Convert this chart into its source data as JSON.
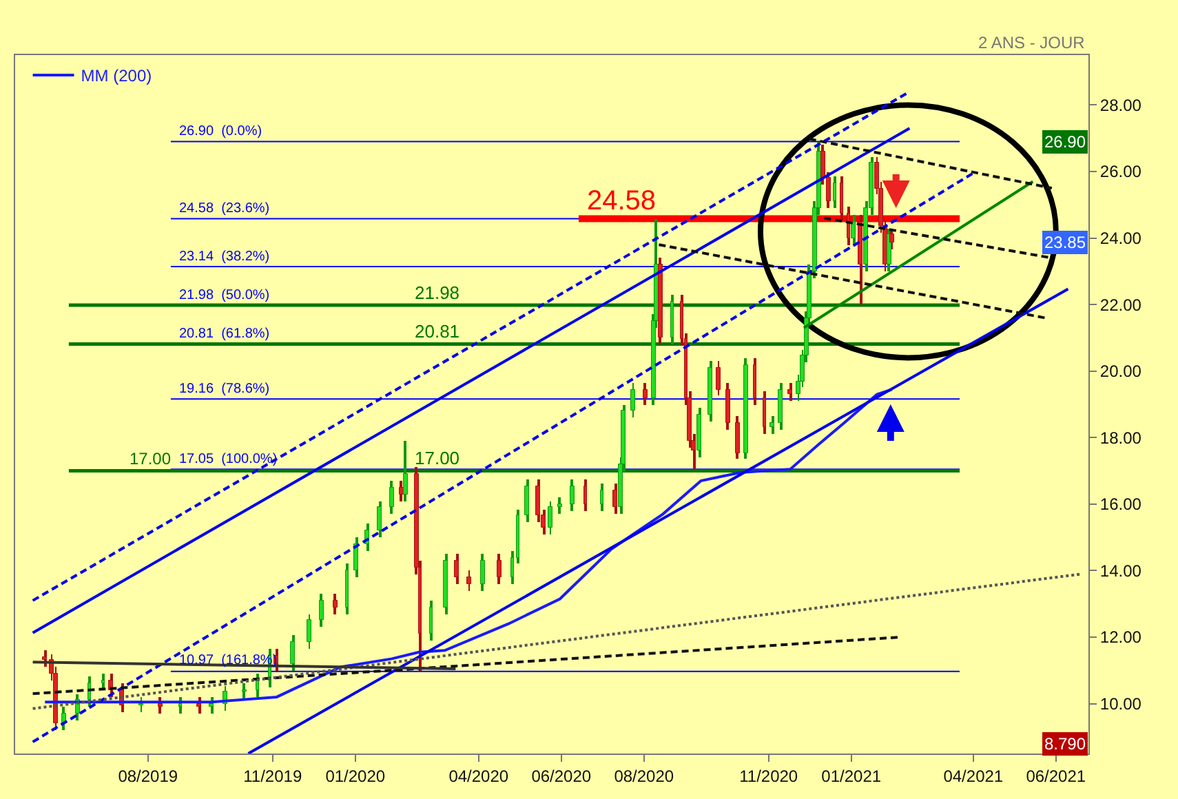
{
  "chart_data": {
    "type": "candlestick",
    "subtitle": "2 ANS - JOUR",
    "x": [
      "2019-05-17",
      "2019-05-22",
      "2019-05-25",
      "2019-05-31",
      "2019-06-10",
      "2019-06-19",
      "2019-06-29",
      "2019-07-05",
      "2019-07-13",
      "2019-07-27",
      "2019-08-10",
      "2019-08-25",
      "2019-09-08",
      "2019-09-17",
      "2019-09-27",
      "2019-10-11",
      "2019-10-21",
      "2019-10-30",
      "2019-11-04",
      "2019-11-16",
      "2019-11-28",
      "2019-12-07",
      "2019-12-17",
      "2019-12-26",
      "2020-01-02",
      "2020-01-10",
      "2020-01-19",
      "2020-01-28",
      "2020-02-04",
      "2020-02-07",
      "2020-02-15",
      "2020-02-18",
      "2020-02-26",
      "2020-03-08",
      "2020-03-16",
      "2020-03-25",
      "2020-04-04",
      "2020-04-16",
      "2020-04-26",
      "2020-04-30",
      "2020-05-07",
      "2020-05-15",
      "2020-05-19",
      "2020-05-24",
      "2020-05-31",
      "2020-06-09",
      "2020-06-19",
      "2020-07-01",
      "2020-07-11",
      "2020-07-15",
      "2020-07-17",
      "2020-07-24",
      "2020-08-02",
      "2020-08-08",
      "2020-08-10",
      "2020-08-13",
      "2020-08-22",
      "2020-08-29",
      "2020-09-01",
      "2020-09-04",
      "2020-09-07",
      "2020-09-11",
      "2020-09-19",
      "2020-09-25",
      "2020-10-02",
      "2020-10-09",
      "2020-10-15",
      "2020-10-22",
      "2020-10-29",
      "2020-11-04",
      "2020-11-10",
      "2020-11-17",
      "2020-11-23",
      "2020-11-26",
      "2020-11-29",
      "2020-12-01",
      "2020-12-05",
      "2020-12-08",
      "2020-12-11",
      "2020-12-15",
      "2020-12-20",
      "2020-12-25",
      "2020-12-30",
      "2021-01-03",
      "2021-01-08",
      "2021-01-12",
      "2021-01-16",
      "2021-01-20",
      "2021-01-23",
      "2021-01-26",
      "2021-01-29",
      "2021-01-31"
    ],
    "ohlc": [
      [
        11.4,
        11.6,
        11.1,
        11.3
      ],
      [
        11.3,
        11.5,
        10.7,
        10.9
      ],
      [
        10.9,
        11.1,
        9.2,
        9.4
      ],
      [
        9.4,
        9.9,
        9.2,
        9.7
      ],
      [
        9.7,
        10.3,
        9.5,
        10.1
      ],
      [
        10.1,
        10.8,
        9.9,
        10.6
      ],
      [
        10.6,
        10.9,
        10.4,
        10.7
      ],
      [
        10.7,
        10.9,
        10.2,
        10.4
      ],
      [
        10.4,
        10.6,
        9.75,
        9.95
      ],
      [
        9.95,
        10.2,
        9.75,
        10.0
      ],
      [
        10.0,
        10.2,
        9.7,
        9.9
      ],
      [
        9.9,
        10.2,
        9.7,
        10.0
      ],
      [
        10.0,
        10.2,
        9.7,
        9.9
      ],
      [
        9.9,
        10.2,
        9.7,
        10.0
      ],
      [
        10.0,
        10.55,
        9.8,
        10.35
      ],
      [
        10.35,
        10.6,
        10.15,
        10.4
      ],
      [
        10.4,
        10.9,
        10.2,
        10.7
      ],
      [
        10.7,
        11.65,
        10.5,
        11.45
      ],
      [
        11.45,
        11.65,
        11.0,
        11.2
      ],
      [
        11.2,
        12.05,
        11.0,
        11.85
      ],
      [
        11.85,
        12.7,
        11.65,
        12.5
      ],
      [
        12.5,
        13.3,
        12.3,
        13.1
      ],
      [
        13.1,
        13.3,
        12.7,
        12.9
      ],
      [
        12.9,
        14.2,
        12.7,
        14.0
      ],
      [
        14.0,
        15.0,
        13.8,
        14.8
      ],
      [
        14.8,
        15.4,
        14.6,
        15.2
      ],
      [
        15.2,
        16.1,
        15.0,
        15.9
      ],
      [
        15.9,
        16.7,
        15.7,
        16.5
      ],
      [
        16.5,
        16.7,
        16.1,
        16.3
      ],
      [
        16.3,
        17.9,
        16.1,
        16.9
      ],
      [
        16.9,
        17.1,
        13.9,
        14.1
      ],
      [
        14.1,
        14.3,
        11.0,
        12.1
      ],
      [
        12.1,
        13.1,
        11.9,
        12.9
      ],
      [
        12.9,
        14.5,
        12.7,
        14.3
      ],
      [
        14.3,
        14.5,
        13.6,
        13.8
      ],
      [
        13.8,
        14.0,
        13.4,
        13.6
      ],
      [
        13.6,
        14.5,
        13.4,
        14.3
      ],
      [
        14.3,
        14.5,
        13.6,
        13.8
      ],
      [
        13.8,
        14.6,
        13.6,
        14.4
      ],
      [
        14.4,
        15.85,
        14.2,
        15.65
      ],
      [
        15.65,
        16.75,
        15.45,
        16.55
      ],
      [
        16.55,
        16.75,
        15.45,
        15.65
      ],
      [
        15.65,
        15.85,
        15.1,
        15.3
      ],
      [
        15.3,
        16.1,
        15.1,
        15.9
      ],
      [
        15.9,
        16.2,
        15.7,
        16.0
      ],
      [
        16.0,
        16.75,
        15.8,
        16.55
      ],
      [
        16.55,
        16.75,
        15.8,
        16.0
      ],
      [
        16.0,
        16.6,
        15.8,
        16.4
      ],
      [
        16.4,
        16.6,
        15.7,
        15.9
      ],
      [
        15.9,
        17.4,
        15.7,
        17.2
      ],
      [
        17.2,
        19.0,
        17.0,
        18.8
      ],
      [
        18.8,
        19.65,
        18.6,
        19.45
      ],
      [
        19.45,
        19.65,
        19.0,
        19.2
      ],
      [
        19.2,
        21.7,
        19.0,
        21.5
      ],
      [
        21.5,
        24.58,
        21.3,
        23.2
      ],
      [
        23.2,
        23.4,
        20.8,
        21.0
      ],
      [
        21.0,
        22.3,
        20.8,
        22.1
      ],
      [
        22.1,
        22.3,
        20.75,
        20.95
      ],
      [
        20.95,
        21.15,
        19.0,
        19.2
      ],
      [
        19.2,
        19.4,
        17.7,
        17.9
      ],
      [
        17.9,
        18.1,
        17.05,
        17.6
      ],
      [
        17.6,
        18.9,
        17.4,
        18.7
      ],
      [
        18.7,
        20.3,
        18.5,
        20.1
      ],
      [
        20.1,
        20.3,
        19.25,
        19.45
      ],
      [
        19.45,
        19.65,
        18.25,
        18.45
      ],
      [
        18.45,
        18.65,
        17.35,
        17.55
      ],
      [
        17.55,
        20.4,
        17.35,
        20.2
      ],
      [
        20.2,
        20.4,
        19.0,
        19.2
      ],
      [
        19.2,
        19.4,
        18.1,
        18.3
      ],
      [
        18.3,
        18.65,
        18.1,
        18.45
      ],
      [
        18.45,
        19.65,
        18.25,
        19.45
      ],
      [
        19.45,
        19.65,
        19.1,
        19.3
      ],
      [
        19.3,
        19.9,
        19.1,
        19.7
      ],
      [
        19.7,
        20.65,
        19.5,
        20.45
      ],
      [
        20.45,
        21.8,
        20.25,
        21.6
      ],
      [
        21.6,
        23.2,
        21.4,
        23.0
      ],
      [
        23.0,
        25.1,
        22.8,
        24.9
      ],
      [
        24.9,
        26.9,
        24.7,
        26.6
      ],
      [
        26.6,
        26.8,
        25.6,
        25.8
      ],
      [
        25.8,
        26.0,
        24.9,
        25.1
      ],
      [
        25.1,
        25.85,
        24.9,
        25.65
      ],
      [
        25.65,
        25.85,
        24.55,
        24.75
      ],
      [
        24.75,
        24.95,
        23.8,
        24.0
      ],
      [
        24.0,
        24.7,
        23.8,
        24.5
      ],
      [
        24.5,
        24.7,
        22.0,
        23.2
      ],
      [
        23.2,
        25.1,
        23.0,
        24.9
      ],
      [
        24.9,
        26.45,
        24.7,
        26.25
      ],
      [
        26.25,
        26.45,
        25.3,
        25.5
      ],
      [
        25.5,
        25.7,
        24.15,
        24.35
      ],
      [
        24.35,
        24.55,
        23.0,
        23.2
      ],
      [
        23.2,
        24.3,
        23.0,
        24.1
      ],
      [
        24.1,
        24.3,
        23.65,
        23.85
      ]
    ],
    "series": [
      {
        "name": "MM (200)",
        "type": "line",
        "color": "#1a1aff",
        "line_style": "solid",
        "x": [
          "2019-05-17",
          "2019-08-01",
          "2019-09-17",
          "2019-11-04",
          "2019-12-21",
          "2020-01-28",
          "2020-02-17",
          "2020-03-07",
          "2020-04-23",
          "2020-05-31",
          "2020-07-08",
          "2020-08-15",
          "2020-09-12",
          "2020-10-11",
          "2020-11-17",
          "2020-12-08",
          "2020-12-27",
          "2021-01-20",
          "2021-01-31"
        ],
        "values": [
          10.05,
          10.05,
          10.05,
          10.2,
          11.1,
          11.35,
          11.55,
          11.6,
          12.4,
          13.15,
          14.65,
          15.7,
          16.7,
          16.95,
          17.05,
          17.8,
          18.45,
          19.3,
          19.45
        ]
      },
      {
        "type": "line",
        "color": "#0000ee",
        "line_style": "solid",
        "x": [
          "2019-05-08",
          "2021-02-13"
        ],
        "values": [
          12.13,
          27.3
        ]
      },
      {
        "type": "line",
        "color": "#0000ee",
        "line_style": "dashed",
        "x": [
          "2019-05-08",
          "2021-02-13"
        ],
        "values": [
          13.1,
          28.4
        ]
      },
      {
        "type": "line",
        "color": "#0000ee",
        "line_style": "dashed",
        "x": [
          "2019-05-08",
          "2021-04-03"
        ],
        "values": [
          8.85,
          26.0
        ]
      },
      {
        "type": "line",
        "color": "#0000ee",
        "line_style": "solid",
        "x": [
          "2019-10-14",
          "2021-06-10"
        ],
        "values": [
          8.5,
          22.47
        ]
      },
      {
        "type": "line",
        "color": "#008800",
        "line_style": "solid",
        "x": [
          "2020-11-27",
          "2021-05-15"
        ],
        "values": [
          21.3,
          25.7
        ]
      },
      {
        "type": "line",
        "color": "#111111",
        "line_style": "dashed",
        "x": [
          "2020-08-12",
          "2021-05-24"
        ],
        "values": [
          23.8,
          21.6
        ]
      },
      {
        "type": "line",
        "color": "#111111",
        "line_style": "dashed",
        "x": [
          "2020-12-01",
          "2021-05-29"
        ],
        "values": [
          26.98,
          25.5
        ]
      },
      {
        "type": "line",
        "color": "#111111",
        "line_style": "dashed",
        "x": [
          "2020-12-12",
          "2021-05-29"
        ],
        "values": [
          24.6,
          23.4
        ]
      },
      {
        "type": "line",
        "color": "#111111",
        "line_style": "dashed",
        "x": [
          "2019-05-08",
          "2021-02-06"
        ],
        "values": [
          10.3,
          12.0
        ]
      },
      {
        "type": "line",
        "color": "#555555",
        "line_style": "dotted",
        "x": [
          "2019-05-08",
          "2021-06-20"
        ],
        "values": [
          9.85,
          13.9
        ]
      },
      {
        "type": "line",
        "color": "#333333",
        "line_style": "solid",
        "x": [
          "2019-05-08",
          "2020-03-15"
        ],
        "values": [
          11.25,
          11.05
        ]
      }
    ],
    "ref_lines": [
      {
        "axis": "y",
        "value": 26.9,
        "label": "26.90  (0.0%)",
        "color": "#0000ff"
      },
      {
        "axis": "y",
        "value": 24.58,
        "label": "24.58  (23.6%)",
        "color": "#0000ff"
      },
      {
        "axis": "y",
        "value": 23.14,
        "label": "23.14  (38.2%)",
        "color": "#0000ff"
      },
      {
        "axis": "y",
        "value": 21.98,
        "label": "21.98  (50.0%)",
        "color": "#0000ff"
      },
      {
        "axis": "y",
        "value": 20.81,
        "label": "20.81  (61.8%)",
        "color": "#0000ff"
      },
      {
        "axis": "y",
        "value": 19.16,
        "label": "19.16  (78.6%)",
        "color": "#0000ff"
      },
      {
        "axis": "y",
        "value": 17.05,
        "label": "17.05  (100.0%)",
        "color": "#0000ff"
      },
      {
        "axis": "y",
        "value": 10.97,
        "label": "10.97  (161.8%)",
        "color": "#0000ff"
      },
      {
        "axis": "y",
        "value": 21.98,
        "label": "21.98",
        "color": "#007700"
      },
      {
        "axis": "y",
        "value": 20.81,
        "label": "20.81",
        "color": "#007700"
      },
      {
        "axis": "y",
        "value": 17.0,
        "label": "17.00",
        "color": "#007700"
      },
      {
        "axis": "y",
        "value": 24.58,
        "label": "24.58",
        "color": "#ff0000"
      }
    ],
    "annotations": [
      {
        "text": "17.00",
        "x": "2019-08-20",
        "y": 17.0
      },
      {
        "text": "26.90",
        "y": 26.9
      },
      {
        "text": "23.85",
        "y": 23.85
      },
      {
        "text": "8.790",
        "y": 8.79
      }
    ],
    "xlim": [
      "2019-04-25",
      "2021-06-25"
    ],
    "xticks": [
      {
        "value": "2019-08-01",
        "label": "08/2019"
      },
      {
        "value": "2019-11-01",
        "label": "11/2019"
      },
      {
        "value": "2020-01-01",
        "label": "01/2020"
      },
      {
        "value": "2020-04-01",
        "label": "04/2020"
      },
      {
        "value": "2020-06-01",
        "label": "06/2020"
      },
      {
        "value": "2020-08-01",
        "label": "08/2020"
      },
      {
        "value": "2020-11-01",
        "label": "11/2020"
      },
      {
        "value": "2021-01-01",
        "label": "01/2021"
      },
      {
        "value": "2021-04-01",
        "label": "04/2021"
      },
      {
        "value": "2021-06-01",
        "label": "06/2021"
      }
    ],
    "ylim": [
      8.5,
      29.5
    ],
    "yticks": [
      {
        "value": 10,
        "label": "10.00"
      },
      {
        "value": 12,
        "label": "12.00"
      },
      {
        "value": 14,
        "label": "14.00"
      },
      {
        "value": 16,
        "label": "16.00"
      },
      {
        "value": 18,
        "label": "18.00"
      },
      {
        "value": 20,
        "label": "20.00"
      },
      {
        "value": 22,
        "label": "22.00"
      },
      {
        "value": 24,
        "label": "24.00"
      },
      {
        "value": 26,
        "label": "26.00"
      },
      {
        "value": 28,
        "label": "28.00"
      }
    ],
    "grid": false,
    "legend": "top left"
  }
}
